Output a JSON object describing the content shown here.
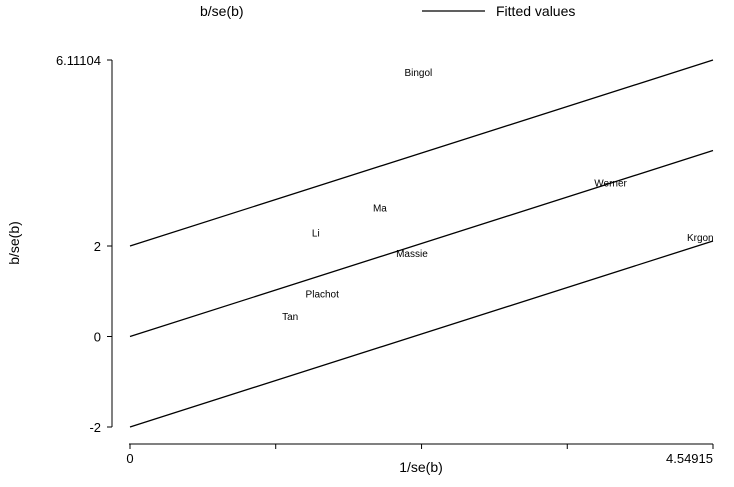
{
  "chart_data": {
    "type": "scatter",
    "xlabel": "1/se(b)",
    "ylabel": "b/se(b)",
    "xlim": [
      0,
      4.54915
    ],
    "ylim": [
      -2,
      6.11104
    ],
    "x_ticks": [
      {
        "value": 0,
        "label": "0"
      },
      {
        "value": 1.137,
        "label": ""
      },
      {
        "value": 2.275,
        "label": ""
      },
      {
        "value": 3.412,
        "label": ""
      },
      {
        "value": 4.54915,
        "label": "4.54915"
      }
    ],
    "y_ticks": [
      {
        "value": -2,
        "label": "-2"
      },
      {
        "value": 0,
        "label": "0"
      },
      {
        "value": 2,
        "label": "2"
      },
      {
        "value": 6.11104,
        "label": "6.11104"
      }
    ],
    "legend": [
      {
        "name": "b/se(b)",
        "marker": "none"
      },
      {
        "name": "Fitted values",
        "marker": "line"
      }
    ],
    "points": [
      {
        "label": "Bingol",
        "x": 2.25,
        "y": 5.85
      },
      {
        "label": "Werner",
        "x": 3.75,
        "y": 3.4
      },
      {
        "label": "Ma",
        "x": 1.95,
        "y": 2.85
      },
      {
        "label": "Li",
        "x": 1.45,
        "y": 2.3
      },
      {
        "label": "Massie",
        "x": 2.2,
        "y": 1.85
      },
      {
        "label": "Krgon",
        "x": 4.45,
        "y": 2.2
      },
      {
        "label": "Plachot",
        "x": 1.5,
        "y": 0.95
      },
      {
        "label": "Tan",
        "x": 1.25,
        "y": 0.45
      }
    ],
    "lines": [
      {
        "name": "upper",
        "x": [
          0,
          4.54915
        ],
        "y": [
          2,
          6.11104
        ]
      },
      {
        "name": "fitted",
        "x": [
          0,
          4.54915
        ],
        "y": [
          0,
          4.11104
        ]
      },
      {
        "name": "lower",
        "x": [
          0,
          4.54915
        ],
        "y": [
          -2,
          2.11104
        ]
      }
    ]
  }
}
